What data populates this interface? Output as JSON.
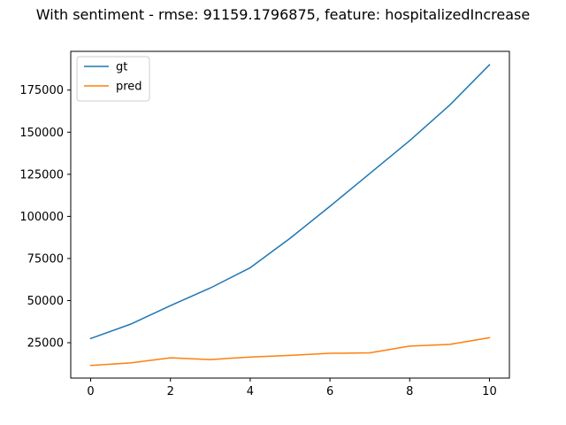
{
  "chart_data": {
    "type": "line",
    "title": "With sentiment - rmse: 91159.1796875, feature: hospitalizedIncrease",
    "xlabel": "",
    "ylabel": "",
    "x": [
      0,
      1,
      2,
      3,
      4,
      5,
      6,
      7,
      8,
      9,
      10
    ],
    "xlim": [
      -0.5,
      10.5
    ],
    "ylim": [
      4000,
      198000
    ],
    "xticks": [
      0,
      2,
      4,
      6,
      8,
      10
    ],
    "yticks": [
      25000,
      50000,
      75000,
      100000,
      125000,
      150000,
      175000
    ],
    "grid": false,
    "legend_position": "upper-left",
    "series": [
      {
        "name": "gt",
        "color": "#1f77b4",
        "values": [
          27500,
          36000,
          47000,
          57500,
          69500,
          87000,
          106000,
          125500,
          145000,
          166000,
          190000
        ]
      },
      {
        "name": "pred",
        "color": "#ff7f0e",
        "values": [
          11500,
          13000,
          16000,
          15000,
          16500,
          17500,
          18700,
          19000,
          23000,
          24000,
          28000
        ]
      }
    ]
  }
}
